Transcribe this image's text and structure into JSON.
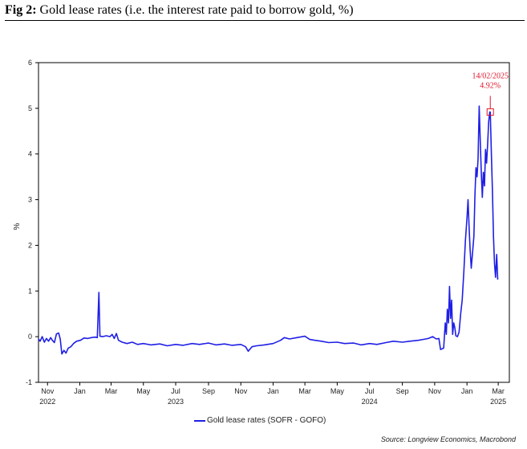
{
  "figure": {
    "label": "Fig 2:",
    "caption": "Gold lease rates (i.e. the interest rate paid to borrow gold, %)",
    "source": "Source: Longview Economics, Macrobond"
  },
  "colors": {
    "series": "#1f1fe6",
    "annotation": "#e0162b",
    "axis": "#000000"
  },
  "chart_data": {
    "type": "line",
    "title": "Gold lease rates (i.e. the interest rate paid to borrow gold, %)",
    "xlabel": "",
    "ylabel": "%",
    "ylim": [
      -1,
      6
    ],
    "yticks": [
      -1,
      0,
      1,
      2,
      3,
      4,
      5,
      6
    ],
    "x_range": [
      "2022-10-15",
      "2025-03-22"
    ],
    "xticks": [
      {
        "date": "2022-11-01",
        "label": "Nov",
        "year": "2022"
      },
      {
        "date": "2023-01-01",
        "label": "Jan",
        "year": ""
      },
      {
        "date": "2023-03-01",
        "label": "Mar",
        "year": ""
      },
      {
        "date": "2023-05-01",
        "label": "May",
        "year": ""
      },
      {
        "date": "2023-07-01",
        "label": "Jul",
        "year": "2023"
      },
      {
        "date": "2023-09-01",
        "label": "Sep",
        "year": ""
      },
      {
        "date": "2023-11-01",
        "label": "Nov",
        "year": ""
      },
      {
        "date": "2024-01-01",
        "label": "Jan",
        "year": ""
      },
      {
        "date": "2024-03-01",
        "label": "Mar",
        "year": ""
      },
      {
        "date": "2024-05-01",
        "label": "May",
        "year": ""
      },
      {
        "date": "2024-07-01",
        "label": "Jul",
        "year": "2024"
      },
      {
        "date": "2024-09-01",
        "label": "Sep",
        "year": ""
      },
      {
        "date": "2024-11-01",
        "label": "Nov",
        "year": ""
      },
      {
        "date": "2025-01-01",
        "label": "Jan",
        "year": ""
      },
      {
        "date": "2025-03-01",
        "label": "Mar",
        "year": "2025"
      }
    ],
    "legend": "Gold lease rates (SOFR - GOFO)",
    "legend_position": "bottom-center",
    "annotation": {
      "date": "2025-02-14",
      "label_date": "14/02/2025",
      "label_value": "4.92%",
      "value": 4.92
    },
    "series": [
      {
        "name": "Gold lease rates (SOFR - GOFO)",
        "points": [
          [
            "2022-10-15",
            -0.05
          ],
          [
            "2022-10-18",
            -0.1
          ],
          [
            "2022-10-22",
            0.0
          ],
          [
            "2022-10-26",
            -0.12
          ],
          [
            "2022-10-30",
            -0.04
          ],
          [
            "2022-11-03",
            -0.1
          ],
          [
            "2022-11-07",
            -0.02
          ],
          [
            "2022-11-10",
            -0.08
          ],
          [
            "2022-11-14",
            -0.13
          ],
          [
            "2022-11-18",
            0.06
          ],
          [
            "2022-11-22",
            0.08
          ],
          [
            "2022-11-25",
            -0.05
          ],
          [
            "2022-11-28",
            -0.38
          ],
          [
            "2022-12-02",
            -0.3
          ],
          [
            "2022-12-06",
            -0.36
          ],
          [
            "2022-12-10",
            -0.25
          ],
          [
            "2022-12-15",
            -0.22
          ],
          [
            "2022-12-20",
            -0.15
          ],
          [
            "2022-12-26",
            -0.1
          ],
          [
            "2023-01-02",
            -0.08
          ],
          [
            "2023-01-09",
            -0.03
          ],
          [
            "2023-01-16",
            -0.04
          ],
          [
            "2023-01-23",
            -0.02
          ],
          [
            "2023-01-30",
            -0.01
          ],
          [
            "2023-02-03",
            -0.02
          ],
          [
            "2023-02-06",
            0.97
          ],
          [
            "2023-02-08",
            0.01
          ],
          [
            "2023-02-13",
            0.0
          ],
          [
            "2023-02-20",
            0.02
          ],
          [
            "2023-02-27",
            0.0
          ],
          [
            "2023-03-03",
            0.05
          ],
          [
            "2023-03-07",
            -0.04
          ],
          [
            "2023-03-11",
            0.07
          ],
          [
            "2023-03-15",
            -0.08
          ],
          [
            "2023-03-22",
            -0.12
          ],
          [
            "2023-03-31",
            -0.15
          ],
          [
            "2023-04-10",
            -0.12
          ],
          [
            "2023-04-20",
            -0.17
          ],
          [
            "2023-05-01",
            -0.15
          ],
          [
            "2023-05-15",
            -0.18
          ],
          [
            "2023-06-01",
            -0.16
          ],
          [
            "2023-06-15",
            -0.2
          ],
          [
            "2023-07-01",
            -0.17
          ],
          [
            "2023-07-15",
            -0.19
          ],
          [
            "2023-08-01",
            -0.15
          ],
          [
            "2023-08-15",
            -0.17
          ],
          [
            "2023-09-01",
            -0.14
          ],
          [
            "2023-09-15",
            -0.18
          ],
          [
            "2023-10-01",
            -0.16
          ],
          [
            "2023-10-15",
            -0.19
          ],
          [
            "2023-11-01",
            -0.17
          ],
          [
            "2023-11-10",
            -0.22
          ],
          [
            "2023-11-15",
            -0.32
          ],
          [
            "2023-11-22",
            -0.22
          ],
          [
            "2023-12-01",
            -0.2
          ],
          [
            "2023-12-15",
            -0.18
          ],
          [
            "2024-01-01",
            -0.15
          ],
          [
            "2024-01-15",
            -0.08
          ],
          [
            "2024-01-22",
            -0.02
          ],
          [
            "2024-02-01",
            -0.05
          ],
          [
            "2024-02-15",
            -0.02
          ],
          [
            "2024-03-01",
            0.01
          ],
          [
            "2024-03-10",
            -0.06
          ],
          [
            "2024-03-20",
            -0.08
          ],
          [
            "2024-04-01",
            -0.1
          ],
          [
            "2024-04-15",
            -0.13
          ],
          [
            "2024-05-01",
            -0.12
          ],
          [
            "2024-05-15",
            -0.15
          ],
          [
            "2024-06-01",
            -0.14
          ],
          [
            "2024-06-15",
            -0.18
          ],
          [
            "2024-07-01",
            -0.15
          ],
          [
            "2024-07-15",
            -0.17
          ],
          [
            "2024-08-01",
            -0.13
          ],
          [
            "2024-08-15",
            -0.1
          ],
          [
            "2024-09-01",
            -0.12
          ],
          [
            "2024-09-15",
            -0.1
          ],
          [
            "2024-10-01",
            -0.08
          ],
          [
            "2024-10-10",
            -0.06
          ],
          [
            "2024-10-20",
            -0.04
          ],
          [
            "2024-10-28",
            0.0
          ],
          [
            "2024-11-04",
            -0.05
          ],
          [
            "2024-11-09",
            -0.04
          ],
          [
            "2024-11-12",
            -0.28
          ],
          [
            "2024-11-18",
            -0.25
          ],
          [
            "2024-11-21",
            0.3
          ],
          [
            "2024-11-23",
            0.05
          ],
          [
            "2024-11-25",
            0.6
          ],
          [
            "2024-11-27",
            0.3
          ],
          [
            "2024-11-29",
            1.1
          ],
          [
            "2024-12-01",
            0.4
          ],
          [
            "2024-12-03",
            0.8
          ],
          [
            "2024-12-05",
            0.05
          ],
          [
            "2024-12-07",
            0.3
          ],
          [
            "2024-12-09",
            0.2
          ],
          [
            "2024-12-11",
            0.02
          ],
          [
            "2024-12-14",
            0.0
          ],
          [
            "2024-12-17",
            0.1
          ],
          [
            "2024-12-20",
            0.5
          ],
          [
            "2024-12-23",
            0.8
          ],
          [
            "2024-12-26",
            1.4
          ],
          [
            "2024-12-29",
            2.1
          ],
          [
            "2025-01-01",
            2.6
          ],
          [
            "2025-01-03",
            3.0
          ],
          [
            "2025-01-05",
            2.4
          ],
          [
            "2025-01-07",
            1.9
          ],
          [
            "2025-01-09",
            1.5
          ],
          [
            "2025-01-12",
            1.9
          ],
          [
            "2025-01-14",
            2.2
          ],
          [
            "2025-01-16",
            3.1
          ],
          [
            "2025-01-18",
            3.7
          ],
          [
            "2025-01-20",
            3.5
          ],
          [
            "2025-01-22",
            3.9
          ],
          [
            "2025-01-24",
            5.05
          ],
          [
            "2025-01-26",
            4.3
          ],
          [
            "2025-01-28",
            3.6
          ],
          [
            "2025-01-30",
            3.05
          ],
          [
            "2025-02-01",
            3.6
          ],
          [
            "2025-02-03",
            3.3
          ],
          [
            "2025-02-05",
            4.1
          ],
          [
            "2025-02-07",
            3.8
          ],
          [
            "2025-02-09",
            4.2
          ],
          [
            "2025-02-11",
            4.7
          ],
          [
            "2025-02-13",
            4.92
          ],
          [
            "2025-02-14",
            4.92
          ],
          [
            "2025-02-16",
            4.0
          ],
          [
            "2025-02-18",
            3.2
          ],
          [
            "2025-02-20",
            2.2
          ],
          [
            "2025-02-22",
            1.6
          ],
          [
            "2025-02-24",
            1.3
          ],
          [
            "2025-02-26",
            1.8
          ],
          [
            "2025-02-28",
            1.25
          ]
        ]
      }
    ]
  }
}
